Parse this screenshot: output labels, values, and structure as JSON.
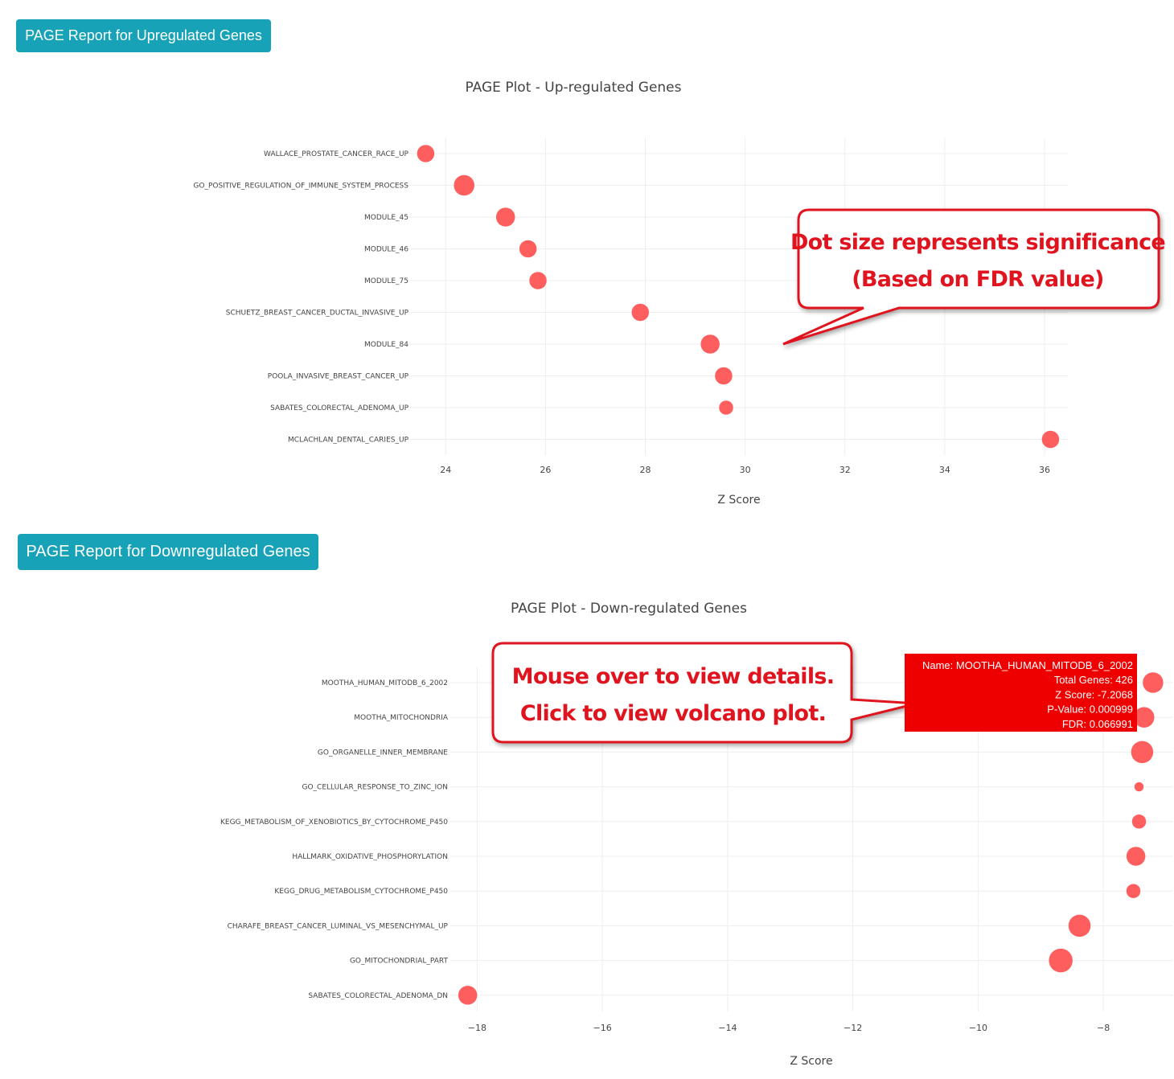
{
  "buttons": {
    "up": "PAGE Report for Upregulated Genes",
    "down": "PAGE Report for Downregulated Genes"
  },
  "annotations": {
    "up_line1": "Dot size represents significance",
    "up_line2": "(Based on FDR value)",
    "down_line1": "Mouse over to view details.",
    "down_line2": "Click to view volcano plot."
  },
  "tooltip": {
    "lines": [
      "Name: MOOTHA_HUMAN_MITODB_6_2002",
      "Total Genes: 426",
      "Z Score: -7.2068",
      "P-Value: 0.000999",
      "FDR: 0.066991"
    ]
  },
  "colors": {
    "dot": "#ff4d4d",
    "button": "#17a2b8",
    "callout": "#e0141e",
    "tooltip": "#ee0000"
  },
  "chart_data": [
    {
      "type": "scatter",
      "title": "PAGE Plot - Up-regulated Genes",
      "xlabel": "Z Score",
      "ylabel": "",
      "xlim": [
        23.4,
        36.5
      ],
      "xticks": [
        24,
        26,
        28,
        30,
        32,
        34,
        36
      ],
      "categories": [
        "WALLACE_PROSTATE_CANCER_RACE_UP",
        "GO_POSITIVE_REGULATION_OF_IMMUNE_SYSTEM_PROCESS",
        "MODULE_45",
        "MODULE_46",
        "MODULE_75",
        "SCHUETZ_BREAST_CANCER_DUCTAL_INVASIVE_UP",
        "MODULE_84",
        "POOLA_INVASIVE_BREAST_CANCER_UP",
        "SABATES_COLORECTAL_ADENOMA_UP",
        "MCLACHLAN_DENTAL_CARIES_UP"
      ],
      "x": [
        23.6,
        24.37,
        25.2,
        25.65,
        25.85,
        27.9,
        29.3,
        29.57,
        29.62,
        36.12
      ],
      "size": [
        11,
        13,
        12,
        11,
        11,
        11,
        12,
        11,
        9,
        11
      ]
    },
    {
      "type": "scatter",
      "title": "PAGE Plot - Down-regulated Genes",
      "xlabel": "Z Score",
      "ylabel": "",
      "xlim": [
        -18.3,
        -7.0
      ],
      "xticks": [
        -18,
        -16,
        -14,
        -12,
        -10,
        -8
      ],
      "tick_labels": [
        "−18",
        "−16",
        "−14",
        "−12",
        "−10",
        "−8"
      ],
      "categories": [
        "MOOTHA_HUMAN_MITODB_6_2002",
        "MOOTHA_MITOCHONDRIA",
        "GO_ORGANELLE_INNER_MEMBRANE",
        "GO_CELLULAR_RESPONSE_TO_ZINC_ION",
        "KEGG_METABOLISM_OF_XENOBIOTICS_BY_CYTOCHROME_P450",
        "HALLMARK_OXIDATIVE_PHOSPHORYLATION",
        "KEGG_DRUG_METABOLISM_CYTOCHROME_P450",
        "CHARAFE_BREAST_CANCER_LUMINAL_VS_MESENCHYMAL_UP",
        "GO_MITOCHONDRIAL_PART",
        "SABATES_COLORECTAL_ADENOMA_DN"
      ],
      "x": [
        -7.2068,
        -7.35,
        -7.38,
        -7.43,
        -7.43,
        -7.48,
        -7.52,
        -8.38,
        -8.68,
        -18.15
      ],
      "size": [
        13,
        13,
        14,
        6,
        9,
        12,
        9,
        14,
        15,
        12
      ]
    }
  ]
}
